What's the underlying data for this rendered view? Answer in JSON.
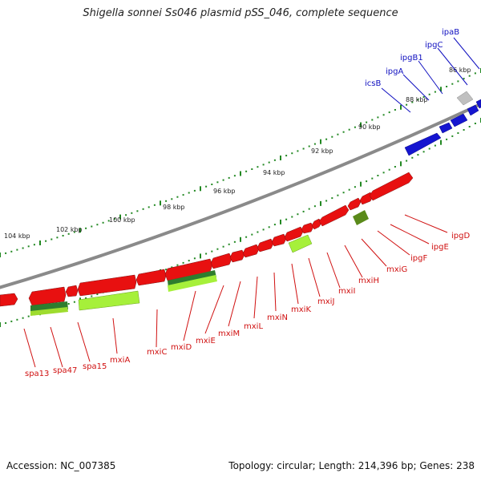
{
  "title": "Shigella sonnei Ss046 plasmid pSS_046, complete sequence",
  "accession": "Accession: NC_007385",
  "summary": "Topology: circular; Length: 214,396 bp; Genes: 238",
  "colors": {
    "label_red": "#d01010",
    "label_blue": "#1010c0",
    "axis": "#8a8a8a",
    "tick": "#228822"
  },
  "scale_labels": [
    "86 kbp",
    "88 kbp",
    "90 kbp",
    "92 kbp",
    "94 kbp",
    "96 kbp",
    "98 kbp",
    "100 kbp",
    "102 kbp",
    "104 kbp"
  ],
  "labels_blue": [
    "ipaB",
    "ipgC",
    "ipgB1",
    "ipgA",
    "icsB"
  ],
  "labels_red": [
    "ipgD",
    "ipgE",
    "ipgF",
    "mxiG",
    "mxiH",
    "mxiI",
    "mxiJ",
    "mxiK",
    "mxiN",
    "mxiL",
    "mxiM",
    "mxiE",
    "mxiD",
    "mxiC",
    "mxiA",
    "spa15",
    "spa47",
    "spa13"
  ]
}
